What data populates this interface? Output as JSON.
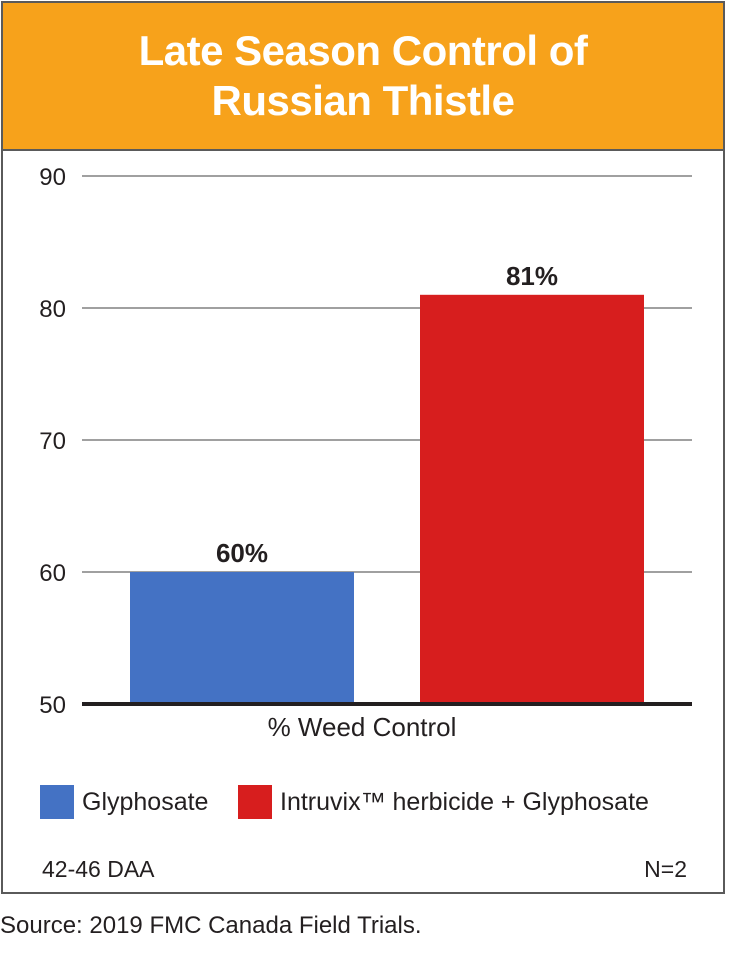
{
  "colors": {
    "header": "#f7a21b",
    "glyphosate": "#4472c4",
    "intruvix": "#d71e1e",
    "grid": "#808080"
  },
  "chart_data": {
    "type": "bar",
    "title": "Late Season Control of Russian Thistle",
    "title_lines": [
      "Late Season Control of",
      "Russian Thistle"
    ],
    "xlabel": "% Weed Control",
    "ylabel": "",
    "ylim": [
      50,
      90
    ],
    "yticks": [
      "90",
      "80",
      "70",
      "60",
      "50"
    ],
    "grid": true,
    "categories": [
      "% Weed Control"
    ],
    "series": [
      {
        "name": "Glyphosate",
        "values": [
          60
        ],
        "label": "60%",
        "color": "#4472c4"
      },
      {
        "name": "Intruvix™ herbicide + Glyphosate",
        "values": [
          81
        ],
        "label": "81%",
        "color": "#d71e1e"
      }
    ],
    "legend": "bottom"
  },
  "footer": {
    "left": "42-46 DAA",
    "right": "N=2"
  },
  "source": "Source: 2019 FMC Canada Field Trials."
}
